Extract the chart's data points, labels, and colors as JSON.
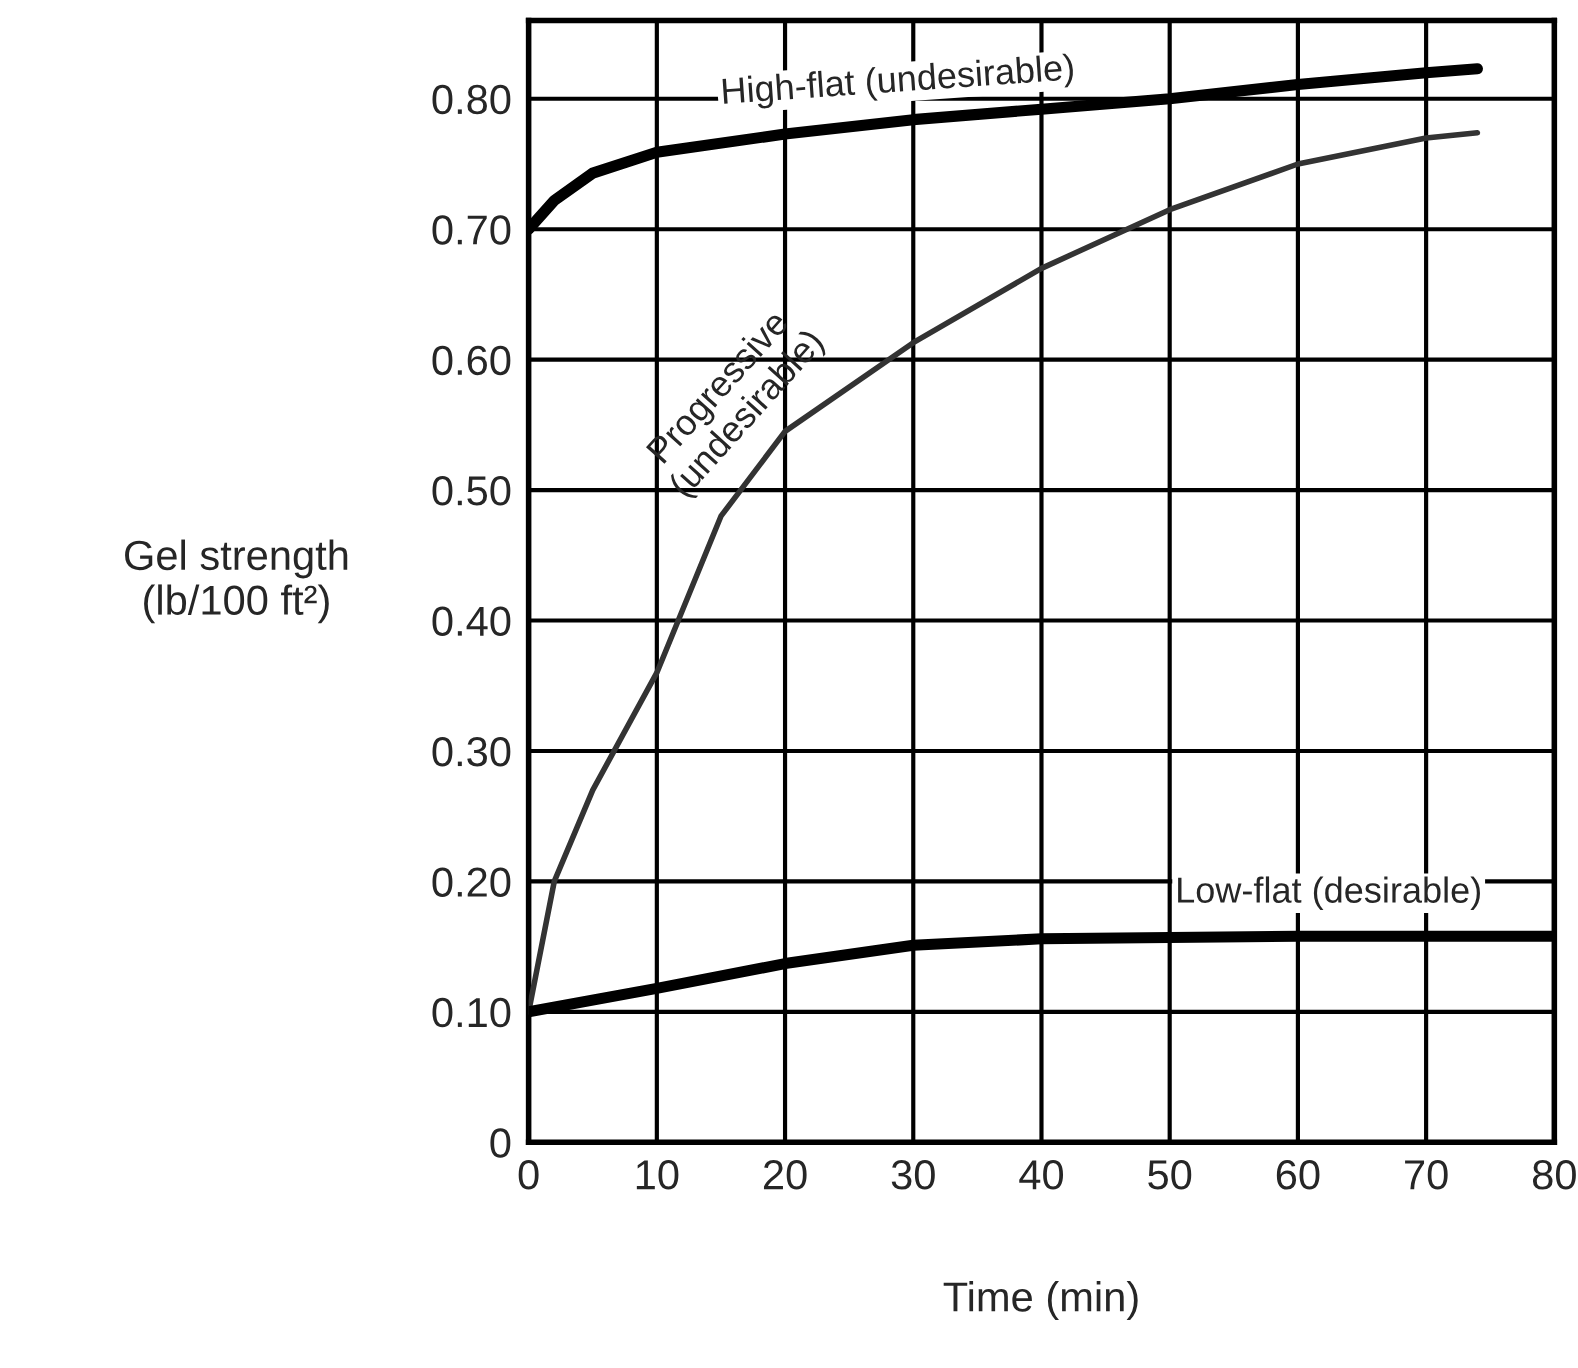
{
  "chart_data": {
    "type": "line",
    "xlabel": "Time (min)",
    "ylabel": "Gel strength\n(lb/100 ft²)",
    "series": [
      {
        "name": "High-flat (undesirable)",
        "color": "#000000",
        "x": [
          0,
          2,
          5,
          10,
          20,
          30,
          40,
          50,
          60,
          70,
          74
        ],
        "values": [
          0.7,
          0.722,
          0.743,
          0.759,
          0.773,
          0.784,
          0.792,
          0.8,
          0.811,
          0.82,
          0.823
        ]
      },
      {
        "name": "Progressive\n(undesirable)",
        "color": "#333333",
        "x": [
          0,
          2,
          5,
          10,
          15,
          20,
          30,
          40,
          50,
          60,
          70,
          74
        ],
        "values": [
          0.1,
          0.2,
          0.27,
          0.36,
          0.48,
          0.545,
          0.613,
          0.67,
          0.715,
          0.75,
          0.77,
          0.774
        ]
      },
      {
        "name": "Low-flat (desirable)",
        "color": "#000000",
        "x": [
          0,
          10,
          20,
          30,
          40,
          50,
          60,
          70,
          80
        ],
        "values": [
          0.1,
          0.118,
          0.137,
          0.151,
          0.156,
          0.157,
          0.158,
          0.158,
          0.158
        ]
      }
    ],
    "xlim": [
      0,
      80
    ],
    "ylim": [
      0,
      0.86
    ],
    "xticks": [
      0,
      10,
      20,
      30,
      40,
      50,
      60,
      70,
      80
    ],
    "yticks": [
      0,
      {
        "value": 0.1,
        "label": "0.10"
      },
      {
        "value": 0.2,
        "label": "0.20"
      },
      {
        "value": 0.3,
        "label": "0.30"
      },
      {
        "value": 0.4,
        "label": "0.40"
      },
      {
        "value": 0.5,
        "label": "0.50"
      },
      {
        "value": 0.6,
        "label": "0.60"
      },
      {
        "value": 0.7,
        "label": "0.70"
      },
      {
        "value": 0.8,
        "label": "0.80"
      }
    ],
    "grid": true,
    "legend": false,
    "marker": "none",
    "line_style": "solid"
  }
}
